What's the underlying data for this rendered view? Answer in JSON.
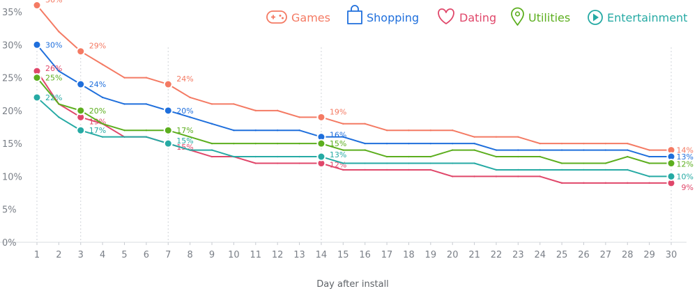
{
  "chart_data": {
    "type": "line",
    "title": "",
    "xlabel": "Day after install",
    "ylabel": "",
    "x": [
      1,
      2,
      3,
      4,
      5,
      6,
      7,
      8,
      9,
      10,
      11,
      12,
      13,
      14,
      15,
      16,
      17,
      18,
      19,
      20,
      21,
      22,
      23,
      24,
      25,
      26,
      27,
      28,
      29,
      30
    ],
    "y_ticks": [
      "0%",
      "5%",
      "10%",
      "15%",
      "20%",
      "25%",
      "30%",
      "35%"
    ],
    "ylim": [
      0,
      35
    ],
    "grid": "vertical dotted lines at days 1, 3, 7, 14, 30",
    "legend_position": "top-right",
    "series": [
      {
        "name": "Games",
        "color": "#f47a63",
        "icon": "gamepad-icon",
        "values": [
          36,
          32,
          29,
          27,
          25,
          25,
          24,
          22,
          21,
          21,
          20,
          20,
          19,
          19,
          18,
          18,
          17,
          17,
          17,
          17,
          16,
          16,
          16,
          15,
          15,
          15,
          15,
          15,
          14,
          14
        ],
        "marked_days": [
          1,
          3,
          7,
          14,
          30
        ],
        "labels": [
          "36%",
          "29%",
          "24%",
          "19%",
          "14%"
        ]
      },
      {
        "name": "Shopping",
        "color": "#1f6fdc",
        "icon": "shopping-bag-icon",
        "values": [
          30,
          26,
          24,
          22,
          21,
          21,
          20,
          19,
          18,
          17,
          17,
          17,
          17,
          16,
          16,
          15,
          15,
          15,
          15,
          15,
          15,
          14,
          14,
          14,
          14,
          14,
          14,
          14,
          13,
          13
        ],
        "marked_days": [
          1,
          3,
          7,
          14,
          30
        ],
        "labels": [
          "30%",
          "24%",
          "20%",
          "16%",
          "13%"
        ]
      },
      {
        "name": "Dating",
        "color": "#e0476a",
        "icon": "heart-icon",
        "values": [
          26,
          21,
          19,
          18,
          16,
          16,
          15,
          14,
          13,
          13,
          12,
          12,
          12,
          12,
          11,
          11,
          11,
          11,
          11,
          10,
          10,
          10,
          10,
          10,
          9,
          9,
          9,
          9,
          9,
          9
        ],
        "marked_days": [
          1,
          3,
          7,
          14,
          30
        ],
        "labels": [
          "26%",
          "19%",
          "15%",
          "12%",
          "9%"
        ]
      },
      {
        "name": "Utilities",
        "color": "#5cae1e",
        "icon": "map-pin-icon",
        "values": [
          25,
          21,
          20,
          18,
          17,
          17,
          17,
          16,
          15,
          15,
          15,
          15,
          15,
          15,
          14,
          14,
          13,
          13,
          13,
          14,
          14,
          13,
          13,
          13,
          12,
          12,
          12,
          13,
          12,
          12
        ],
        "marked_days": [
          1,
          3,
          7,
          14,
          30
        ],
        "labels": [
          "25%",
          "20%",
          "17%",
          "15%",
          "12%"
        ]
      },
      {
        "name": "Entertainment",
        "color": "#26aaa4",
        "icon": "play-circle-icon",
        "values": [
          22,
          19,
          17,
          16,
          16,
          16,
          15,
          14,
          14,
          13,
          13,
          13,
          13,
          13,
          12,
          12,
          12,
          12,
          12,
          12,
          12,
          11,
          11,
          11,
          11,
          11,
          11,
          11,
          10,
          10
        ],
        "marked_days": [
          1,
          3,
          7,
          14,
          30
        ],
        "labels": [
          "22%",
          "17%",
          "15%",
          "13%",
          "10%"
        ]
      }
    ]
  }
}
